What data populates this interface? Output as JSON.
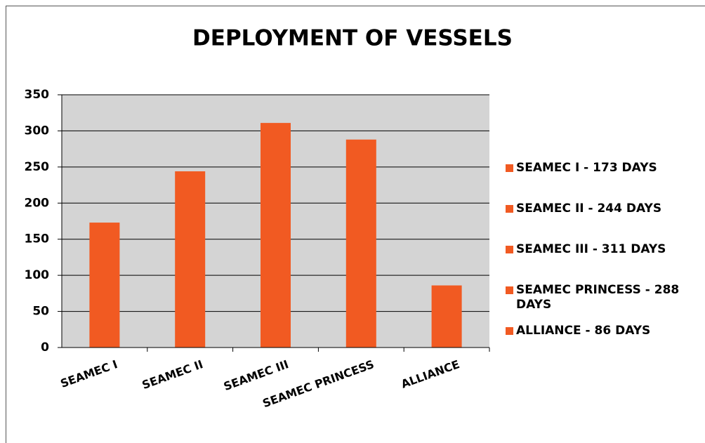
{
  "chart_data": {
    "type": "bar",
    "title": "DEPLOYMENT OF VESSELS",
    "categories": [
      "SEAMEC I",
      "SEAMEC II",
      "SEAMEC III",
      "SEAMEC PRINCESS",
      "ALLIANCE"
    ],
    "values": [
      173,
      244,
      311,
      288,
      86
    ],
    "color": "#f15a22",
    "legend_labels": [
      "SEAMEC I - 173 DAYS",
      "SEAMEC II - 244 DAYS",
      "SEAMEC III - 311 DAYS",
      "SEAMEC PRINCESS - 288 DAYS",
      "ALLIANCE - 86 DAYS"
    ],
    "ylim": [
      0,
      350
    ],
    "yticks": [
      0,
      50,
      100,
      150,
      200,
      250,
      300,
      350
    ],
    "grid": true
  }
}
